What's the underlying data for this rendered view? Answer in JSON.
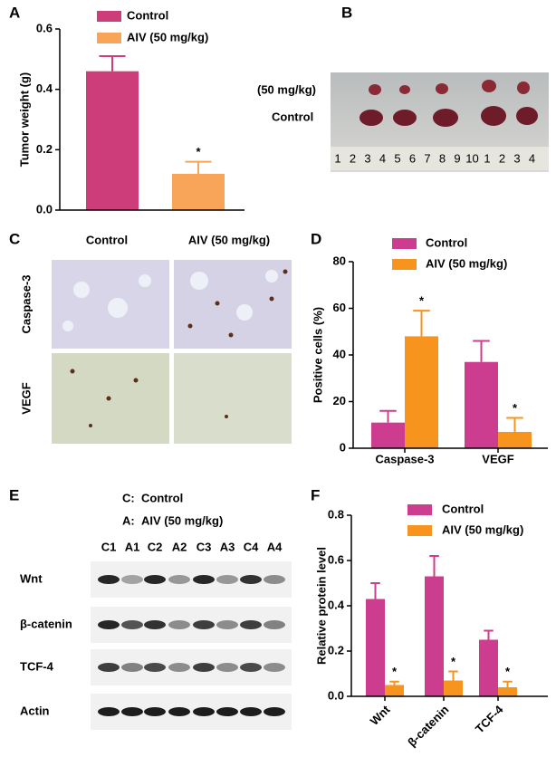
{
  "chart_data": [
    {
      "type": "bar",
      "ylabel": "Tumor weight (g)",
      "categories": [
        null
      ],
      "series": [
        {
          "name": "Control",
          "color": "#cc3d7a",
          "values": [
            0.46
          ],
          "errors": [
            0.05
          ]
        },
        {
          "name": "AIV (50 mg/kg)",
          "color": "#f8a55a",
          "values": [
            0.12
          ],
          "errors": [
            0.04
          ],
          "annotations": [
            "*"
          ]
        }
      ],
      "ylim": [
        0,
        0.6
      ],
      "yticks": [
        {
          "value": 0,
          "label": "0.0"
        },
        0.2,
        0.4,
        0.6
      ]
    },
    {
      "type": "bar",
      "ylabel": "Positive cells (%)",
      "categories": [
        "Caspase-3",
        "VEGF"
      ],
      "series": [
        {
          "name": "Control",
          "color": "#cc3d8f",
          "values": [
            11,
            37
          ],
          "errors": [
            5,
            9
          ]
        },
        {
          "name": "AIV (50 mg/kg)",
          "color": "#f7941d",
          "values": [
            48,
            7
          ],
          "errors": [
            11,
            6
          ],
          "annotations": [
            "*",
            "*"
          ]
        }
      ],
      "ylim": [
        0,
        80
      ],
      "yticks": [
        0,
        20,
        40,
        60,
        80
      ]
    },
    {
      "type": "bar",
      "ylabel": "Relative protein level",
      "categories": [
        "Wnt",
        "β-catenin",
        "TCF-4"
      ],
      "series": [
        {
          "name": "Control",
          "color": "#cc3d8f",
          "values": [
            0.43,
            0.53,
            0.25
          ],
          "errors": [
            0.07,
            0.09,
            0.04
          ]
        },
        {
          "name": "AIV (50 mg/kg)",
          "color": "#f7941d",
          "values": [
            0.05,
            0.07,
            0.04
          ],
          "errors": [
            0.015,
            0.04,
            0.025
          ],
          "annotations": [
            "*",
            "*",
            "*"
          ]
        }
      ],
      "ylim": [
        0,
        0.8
      ],
      "yticks": [
        {
          "value": 0,
          "label": "0.0"
        },
        0.2,
        0.4,
        0.6,
        0.8
      ]
    }
  ],
  "panel_labels": [
    "A",
    "B",
    "C",
    "D",
    "E",
    "F"
  ],
  "figure_b": {
    "labels": [
      "(50 mg/kg)",
      "Control"
    ],
    "ruler": [
      "1",
      "2",
      "3",
      "4",
      "5",
      "6",
      "7",
      "8",
      "9",
      "10",
      "1",
      "2",
      "3",
      "4"
    ]
  },
  "figure_c": {
    "columns": [
      "Control",
      "AIV (50 mg/kg)"
    ],
    "rows": [
      "Caspase-3",
      "VEGF"
    ]
  },
  "figure_e": {
    "key": [
      {
        "code": "C:",
        "text": "Control"
      },
      {
        "code": "A:",
        "text": "AIV (50 mg/kg)"
      }
    ],
    "lanes": [
      "C1",
      "A1",
      "C2",
      "A2",
      "C3",
      "A3",
      "C4",
      "A4"
    ],
    "rows": [
      "Wnt",
      "β-catenin",
      "TCF-4",
      "Actin"
    ]
  }
}
